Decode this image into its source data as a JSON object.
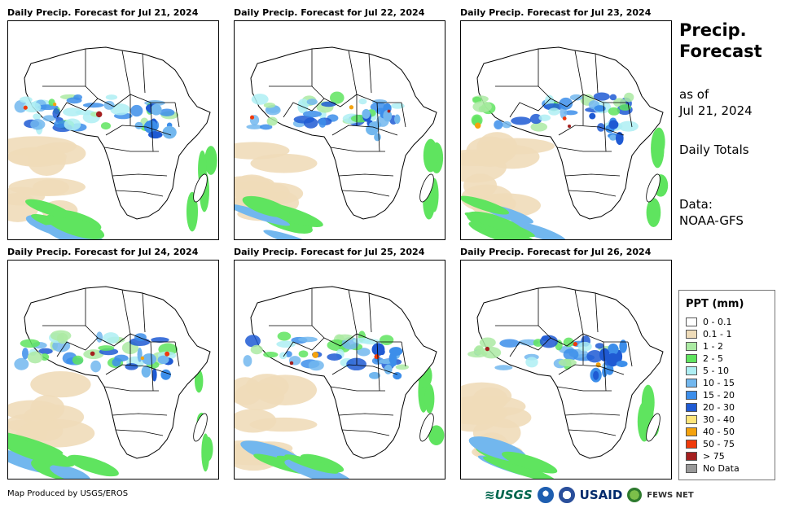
{
  "panels": [
    {
      "title": "Daily Precip. Forecast for Jul 21, 2024",
      "sahel_intensity": 0.9,
      "east_intensity": 0.7
    },
    {
      "title": "Daily Precip. Forecast for Jul 22, 2024",
      "sahel_intensity": 0.8,
      "east_intensity": 0.8
    },
    {
      "title": "Daily Precip. Forecast for Jul 23, 2024",
      "sahel_intensity": 0.85,
      "east_intensity": 0.6
    },
    {
      "title": "Daily Precip. Forecast for Jul 24, 2024",
      "sahel_intensity": 0.8,
      "east_intensity": 0.5
    },
    {
      "title": "Daily Precip. Forecast for Jul 25, 2024",
      "sahel_intensity": 0.75,
      "east_intensity": 0.8
    },
    {
      "title": "Daily Precip. Forecast for Jul 26, 2024",
      "sahel_intensity": 0.7,
      "east_intensity": 0.7
    }
  ],
  "sidebar": {
    "title_line1": "Precip.",
    "title_line2": "Forecast",
    "asof_line1": "as of",
    "asof_line2": "Jul 21, 2024",
    "totals": "Daily Totals",
    "data_line1": "Data:",
    "data_line2": "NOAA-GFS"
  },
  "legend": {
    "title": "PPT (mm)",
    "items": [
      {
        "label": "0 - 0.1",
        "color": "#ffffff"
      },
      {
        "label": "0.1 - 1",
        "color": "#efdcb9"
      },
      {
        "label": "1 - 2",
        "color": "#abeaa3"
      },
      {
        "label": "2 - 5",
        "color": "#5fe45f"
      },
      {
        "label": "5 - 10",
        "color": "#aeeef3"
      },
      {
        "label": "10 - 15",
        "color": "#72b7ee"
      },
      {
        "label": "15 - 20",
        "color": "#3c8eea"
      },
      {
        "label": "20 - 30",
        "color": "#1f5ad3"
      },
      {
        "label": "30 - 40",
        "color": "#fde57a"
      },
      {
        "label": "40 - 50",
        "color": "#f4a20d"
      },
      {
        "label": "50 - 75",
        "color": "#f03a0a"
      },
      {
        "label": "> 75",
        "color": "#a51f1f"
      },
      {
        "label": "No Data",
        "color": "#999999"
      }
    ]
  },
  "footer": {
    "credit": "Map Produced by USGS/EROS",
    "logo_usgs": "≋USGS",
    "logo_usaid": "USAID",
    "logo_fews": "FEWS NET"
  }
}
